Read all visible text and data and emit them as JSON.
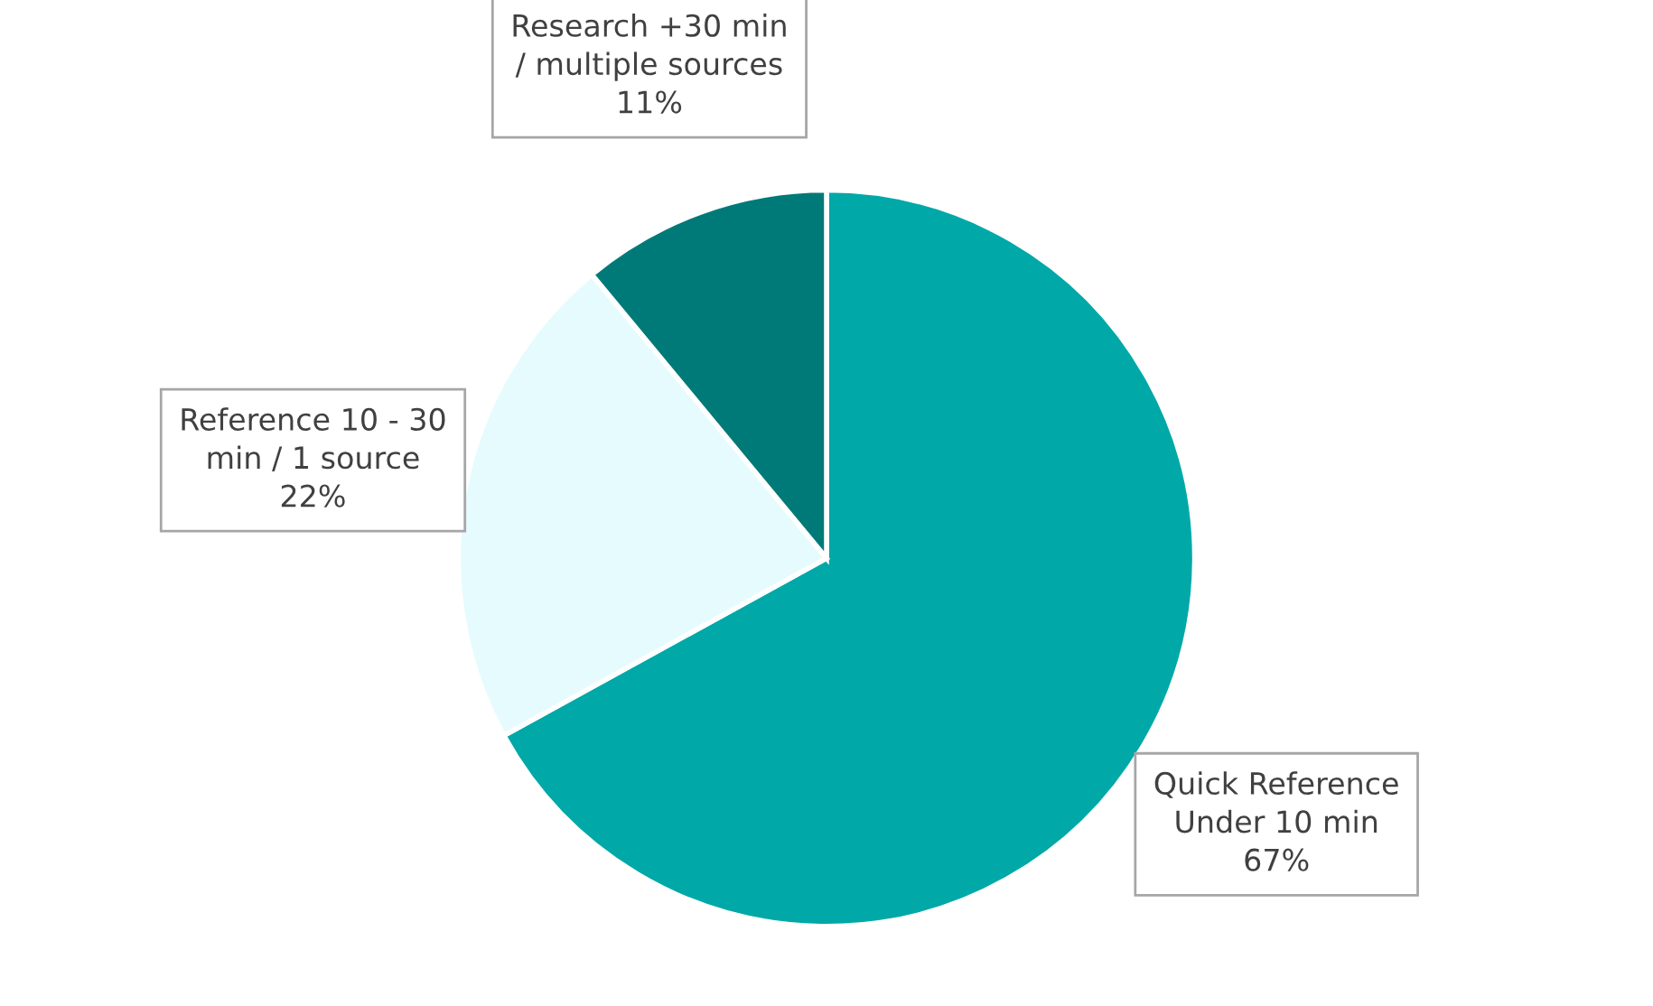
{
  "chart_data": {
    "type": "pie",
    "categories": [
      "Quick Reference\nUnder 10 min",
      "Reference 10 - 30\nmin / 1 source",
      "Research +30 min\n/ multiple sources"
    ],
    "values": [
      67,
      22,
      11
    ],
    "value_labels": [
      "67%",
      "22%",
      "11%"
    ],
    "colors": [
      "#00a8a8",
      "#e6fbfd",
      "#007a78"
    ],
    "legend": false
  }
}
